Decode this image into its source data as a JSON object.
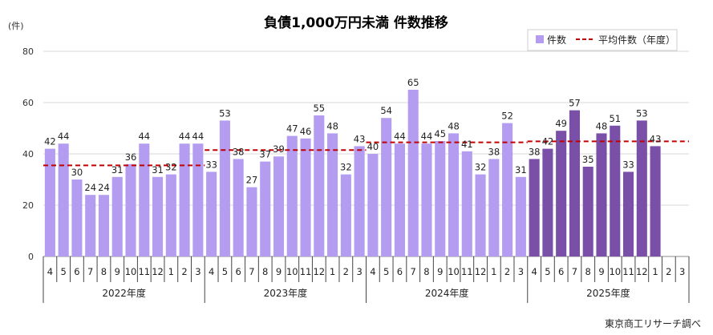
{
  "chart_data": {
    "type": "bar",
    "title": "負債1,000万円未満 件数推移",
    "y_unit": "(件)",
    "ylim": [
      0,
      80
    ],
    "yticks": [
      0,
      20,
      40,
      60,
      80
    ],
    "grid": true,
    "legend_position": "top-right",
    "legend": {
      "bar": "件数",
      "line": "平均件数（年度）"
    },
    "source": "東京商工リサーチ調べ",
    "colors": {
      "bar_past": "#b49cf0",
      "bar_current": "#7a4fa8",
      "avg_line": "#c00000"
    },
    "categories": [
      "4",
      "5",
      "6",
      "7",
      "8",
      "9",
      "10",
      "11",
      "12",
      "1",
      "2",
      "3",
      "4",
      "5",
      "6",
      "7",
      "8",
      "9",
      "10",
      "11",
      "12",
      "1",
      "2",
      "3",
      "4",
      "5",
      "6",
      "7",
      "8",
      "9",
      "10",
      "11",
      "12",
      "1",
      "2",
      "3",
      "4",
      "5",
      "6",
      "7",
      "8",
      "9",
      "10",
      "11",
      "12",
      "1",
      "2",
      "3"
    ],
    "fiscal_years": [
      {
        "label": "2022年度",
        "values": [
          42,
          44,
          30,
          24,
          24,
          31,
          36,
          44,
          31,
          32,
          44,
          44
        ],
        "average": 35.5
      },
      {
        "label": "2023年度",
        "values": [
          33,
          53,
          38,
          27,
          37,
          39,
          47,
          46,
          55,
          48,
          32,
          43
        ],
        "average": 41.5
      },
      {
        "label": "2024年度",
        "values": [
          40,
          54,
          44,
          65,
          44,
          45,
          48,
          41,
          32,
          38,
          52,
          31
        ],
        "average": 44.5
      },
      {
        "label": "2025年度",
        "values": [
          38,
          42,
          49,
          57,
          35,
          48,
          51,
          33,
          53,
          43,
          null,
          null
        ],
        "average": 44.9
      }
    ]
  }
}
